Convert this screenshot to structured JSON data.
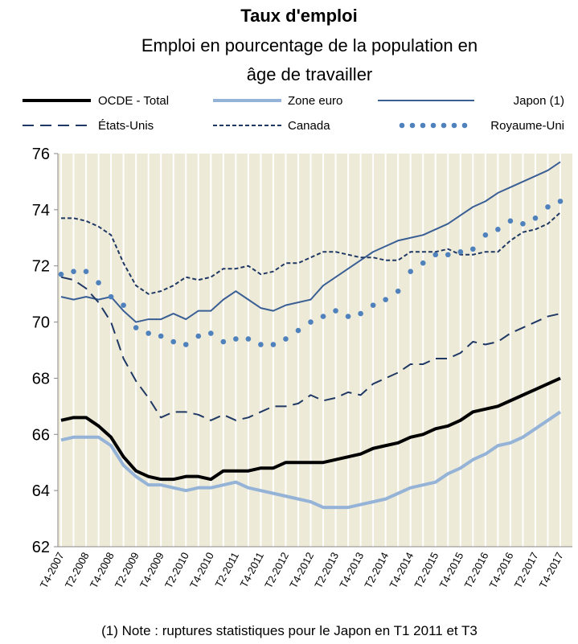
{
  "chart_data": {
    "type": "line",
    "title": "Taux d'emploi",
    "subtitle": [
      "Emploi en pourcentage de la population en",
      "âge de travailler"
    ],
    "note": "(1) Note : ruptures statistiques pour le Japon en T1 2011 et T3",
    "categories": [
      "T4-2007",
      null,
      "T2-2008",
      null,
      "T4-2008",
      null,
      "T2-2009",
      null,
      "T4-2009",
      null,
      "T2-2010",
      null,
      "T4-2010",
      null,
      "T2-2011",
      null,
      "T4-2011",
      null,
      "T2-2012",
      null,
      "T4-2012",
      null,
      "T2-2013",
      null,
      "T4-2013",
      null,
      "T2-2014",
      null,
      "T4-2014",
      null,
      "T2-2015",
      null,
      "T4-2015",
      null,
      "T2-2016",
      null,
      "T4-2016",
      null,
      "T2-2017",
      null,
      "T4-2017"
    ],
    "ylim": [
      62,
      76
    ],
    "yticks": [
      62,
      64,
      66,
      68,
      70,
      72,
      74,
      76
    ],
    "xgrid": true,
    "series": [
      {
        "name": "OCDE - Total",
        "color": "#000000",
        "style": "solid",
        "values": [
          66.5,
          66.6,
          66.6,
          66.3,
          65.9,
          65.2,
          64.7,
          64.5,
          64.4,
          64.4,
          64.5,
          64.5,
          64.4,
          64.7,
          64.7,
          64.7,
          64.8,
          64.8,
          65.0,
          65.0,
          65.0,
          65.0,
          65.1,
          65.2,
          65.3,
          65.5,
          65.6,
          65.7,
          65.9,
          66.0,
          66.2,
          66.3,
          66.5,
          66.8,
          66.9,
          67.0,
          67.2,
          67.4,
          67.6,
          67.8,
          68.0
        ]
      },
      {
        "name": "Zone euro",
        "color": "#95b3d7",
        "style": "solid",
        "values": [
          65.8,
          65.9,
          65.9,
          65.9,
          65.6,
          64.9,
          64.5,
          64.2,
          64.2,
          64.1,
          64.0,
          64.1,
          64.1,
          64.2,
          64.3,
          64.1,
          64.0,
          63.9,
          63.8,
          63.7,
          63.6,
          63.4,
          63.4,
          63.4,
          63.5,
          63.6,
          63.7,
          63.9,
          64.1,
          64.2,
          64.3,
          64.6,
          64.8,
          65.1,
          65.3,
          65.6,
          65.7,
          65.9,
          66.2,
          66.5,
          66.8
        ]
      },
      {
        "name": "Japon (1)",
        "color": "#3a5f95",
        "style": "thin",
        "values": [
          70.9,
          70.8,
          70.9,
          70.8,
          70.9,
          70.4,
          70.0,
          70.1,
          70.1,
          70.3,
          70.1,
          70.4,
          70.4,
          70.8,
          71.1,
          70.8,
          70.5,
          70.4,
          70.6,
          70.7,
          70.8,
          71.3,
          71.6,
          71.9,
          72.2,
          72.5,
          72.7,
          72.9,
          73.0,
          73.1,
          73.3,
          73.5,
          73.8,
          74.1,
          74.3,
          74.6,
          74.8,
          75.0,
          75.2,
          75.4,
          75.7
        ]
      },
      {
        "name": "États-Unis",
        "color": "#1f3864",
        "style": "dash",
        "values": [
          71.6,
          71.5,
          71.2,
          70.7,
          70.0,
          68.7,
          67.9,
          67.3,
          66.6,
          66.8,
          66.8,
          66.7,
          66.5,
          66.7,
          66.5,
          66.6,
          66.8,
          67.0,
          67.0,
          67.1,
          67.4,
          67.2,
          67.3,
          67.5,
          67.4,
          67.8,
          68.0,
          68.2,
          68.5,
          68.5,
          68.7,
          68.7,
          68.9,
          69.3,
          69.2,
          69.3,
          69.6,
          69.8,
          70.0,
          70.2,
          70.3
        ]
      },
      {
        "name": "Canada",
        "color": "#1f3864",
        "style": "shortdash",
        "values": [
          73.7,
          73.7,
          73.6,
          73.4,
          73.1,
          72.1,
          71.3,
          71.0,
          71.1,
          71.3,
          71.6,
          71.5,
          71.6,
          71.9,
          71.9,
          72.0,
          71.7,
          71.8,
          72.1,
          72.1,
          72.3,
          72.5,
          72.5,
          72.4,
          72.3,
          72.3,
          72.2,
          72.2,
          72.5,
          72.5,
          72.5,
          72.6,
          72.4,
          72.4,
          72.5,
          72.5,
          72.9,
          73.2,
          73.3,
          73.5,
          73.9
        ]
      },
      {
        "name": "Royaume-Uni",
        "color": "#4f81bd",
        "style": "dots",
        "values": [
          71.7,
          71.8,
          71.8,
          71.4,
          70.9,
          70.6,
          69.8,
          69.6,
          69.5,
          69.3,
          69.2,
          69.5,
          69.6,
          69.3,
          69.4,
          69.4,
          69.2,
          69.2,
          69.4,
          69.7,
          70.0,
          70.2,
          70.4,
          70.2,
          70.3,
          70.6,
          70.8,
          71.1,
          71.8,
          72.1,
          72.4,
          72.4,
          72.5,
          72.6,
          73.1,
          73.3,
          73.6,
          73.5,
          73.7,
          74.1,
          74.3
        ]
      }
    ]
  }
}
